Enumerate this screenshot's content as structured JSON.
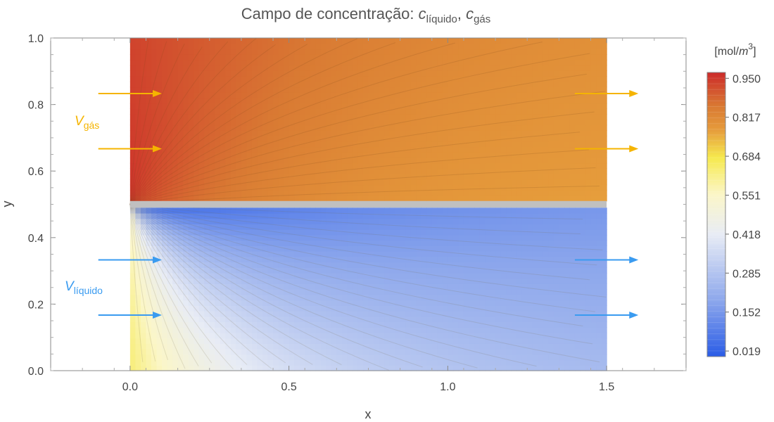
{
  "chart_data": {
    "type": "heatmap",
    "title": {
      "main": "Campo de concentração: ",
      "var1": "c",
      "sub1": "líquido",
      "sep": ", ",
      "var2": "c",
      "sub2": "gás"
    },
    "xlabel": "x",
    "ylabel": "y",
    "xlim": [
      -0.25,
      1.75
    ],
    "ylim": [
      0.0,
      1.0
    ],
    "x_ticks": [
      0.0,
      0.5,
      1.0,
      1.5
    ],
    "x_tick_labels": [
      "0.0",
      "0.5",
      "1.0",
      "1.5"
    ],
    "y_ticks": [
      0.0,
      0.2,
      0.4,
      0.6,
      0.8,
      1.0
    ],
    "y_tick_labels": [
      "0.0",
      "0.2",
      "0.4",
      "0.6",
      "0.8",
      "1.0"
    ],
    "domain": {
      "x": [
        0.0,
        1.5
      ],
      "liquid_y": [
        0.0,
        0.49
      ],
      "membrane_y": [
        0.49,
        0.51
      ],
      "gas_y": [
        0.51,
        1.0
      ]
    },
    "membrane_color": "#c0c0c0",
    "colorbar": {
      "title_prefix": "[mol/",
      "title_var": "m",
      "title_sup": "3",
      "title_suffix": "]",
      "min": 0.0,
      "max": 0.97,
      "ticks": [
        0.019,
        0.152,
        0.285,
        0.418,
        0.551,
        0.684,
        0.817,
        0.95
      ],
      "tick_labels": [
        "0.019",
        "0.152",
        "0.285",
        "0.418",
        "0.551",
        "0.684",
        "0.817",
        "0.950"
      ],
      "colors": [
        "#2a5ce6",
        "#8ea8ec",
        "#e8ecf5",
        "#fbf6c8",
        "#f6e94e",
        "#e59a3b",
        "#d97a33",
        "#cc2a2a"
      ],
      "color_positions": [
        0.0,
        0.2,
        0.43,
        0.57,
        0.7,
        0.8,
        0.88,
        1.0
      ]
    },
    "annotations": {
      "gas_velocity": {
        "var": "V",
        "sub": "gás",
        "color": "#f5b400"
      },
      "liquid_velocity": {
        "var": "V",
        "sub": "líquido",
        "color": "#3a9bf0"
      }
    },
    "arrows": {
      "inlet_x": [
        -0.1,
        0.1
      ],
      "outlet_x": [
        1.4,
        1.6
      ],
      "gas_y": [
        0.833,
        0.667
      ],
      "liquid_y": [
        0.333,
        0.167
      ]
    }
  }
}
